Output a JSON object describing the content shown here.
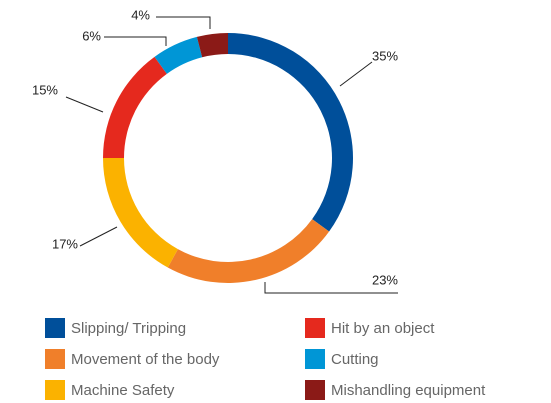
{
  "chart_data": {
    "type": "donut",
    "categories": [
      "Slipping/ Tripping",
      "Movement of the body",
      "Machine Safety",
      "Hit by an object",
      "Cutting",
      "Mishandling equipment"
    ],
    "values": [
      35,
      23,
      17,
      15,
      6,
      4
    ],
    "value_labels": [
      "35%",
      "23%",
      "17%",
      "15%",
      "6%",
      "4%"
    ],
    "colors": [
      "#004f9a",
      "#f07f2a",
      "#fbb200",
      "#e5291e",
      "#0096d6",
      "#8b1a17"
    ],
    "legend": "bottom"
  }
}
